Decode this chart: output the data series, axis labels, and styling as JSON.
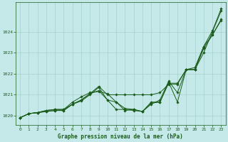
{
  "title": "Graphe pression niveau de la mer (hPa)",
  "background_color": "#c5e8e8",
  "grid_color": "#a8d0d0",
  "line_color": "#1a5c1a",
  "marker_color": "#1a5c1a",
  "xlim": [
    -0.5,
    23.5
  ],
  "ylim": [
    1019.55,
    1025.4
  ],
  "yticks": [
    1020,
    1021,
    1022,
    1023,
    1024
  ],
  "xticks": [
    0,
    1,
    2,
    3,
    4,
    5,
    6,
    7,
    8,
    9,
    10,
    11,
    12,
    13,
    14,
    15,
    16,
    17,
    18,
    19,
    20,
    21,
    22,
    23
  ],
  "series": [
    [
      1019.9,
      1020.1,
      1020.15,
      1020.2,
      1020.25,
      1020.25,
      1020.55,
      1020.7,
      1021.0,
      1021.35,
      1020.75,
      1020.65,
      1020.25,
      1020.3,
      1020.2,
      1020.65,
      1020.65,
      1021.6,
      1020.65,
      1022.2,
      1022.2,
      1023.3,
      1023.85,
      1024.55
    ],
    [
      1019.9,
      1020.1,
      1020.15,
      1020.2,
      1020.25,
      1020.25,
      1020.55,
      1020.75,
      1021.05,
      1021.4,
      1021.0,
      1021.0,
      1021.0,
      1021.0,
      1021.0,
      1021.0,
      1021.1,
      1021.5,
      1021.5,
      1022.2,
      1022.2,
      1023.0,
      1024.0,
      1025.0
    ],
    [
      1019.9,
      1020.1,
      1020.15,
      1020.25,
      1020.3,
      1020.3,
      1020.55,
      1020.75,
      1021.05,
      1021.2,
      1020.75,
      1020.3,
      1020.3,
      1020.25,
      1020.2,
      1020.6,
      1020.65,
      1021.55,
      1021.55,
      1022.2,
      1022.2,
      1023.2,
      1023.85,
      1024.6
    ],
    [
      1019.9,
      1020.1,
      1020.15,
      1020.25,
      1020.3,
      1020.3,
      1020.65,
      1020.9,
      1021.1,
      1021.15,
      1021.05,
      1020.65,
      1020.35,
      1020.3,
      1020.2,
      1020.55,
      1020.75,
      1021.65,
      1021.1,
      1022.2,
      1022.3,
      1023.3,
      1024.05,
      1025.1
    ]
  ]
}
